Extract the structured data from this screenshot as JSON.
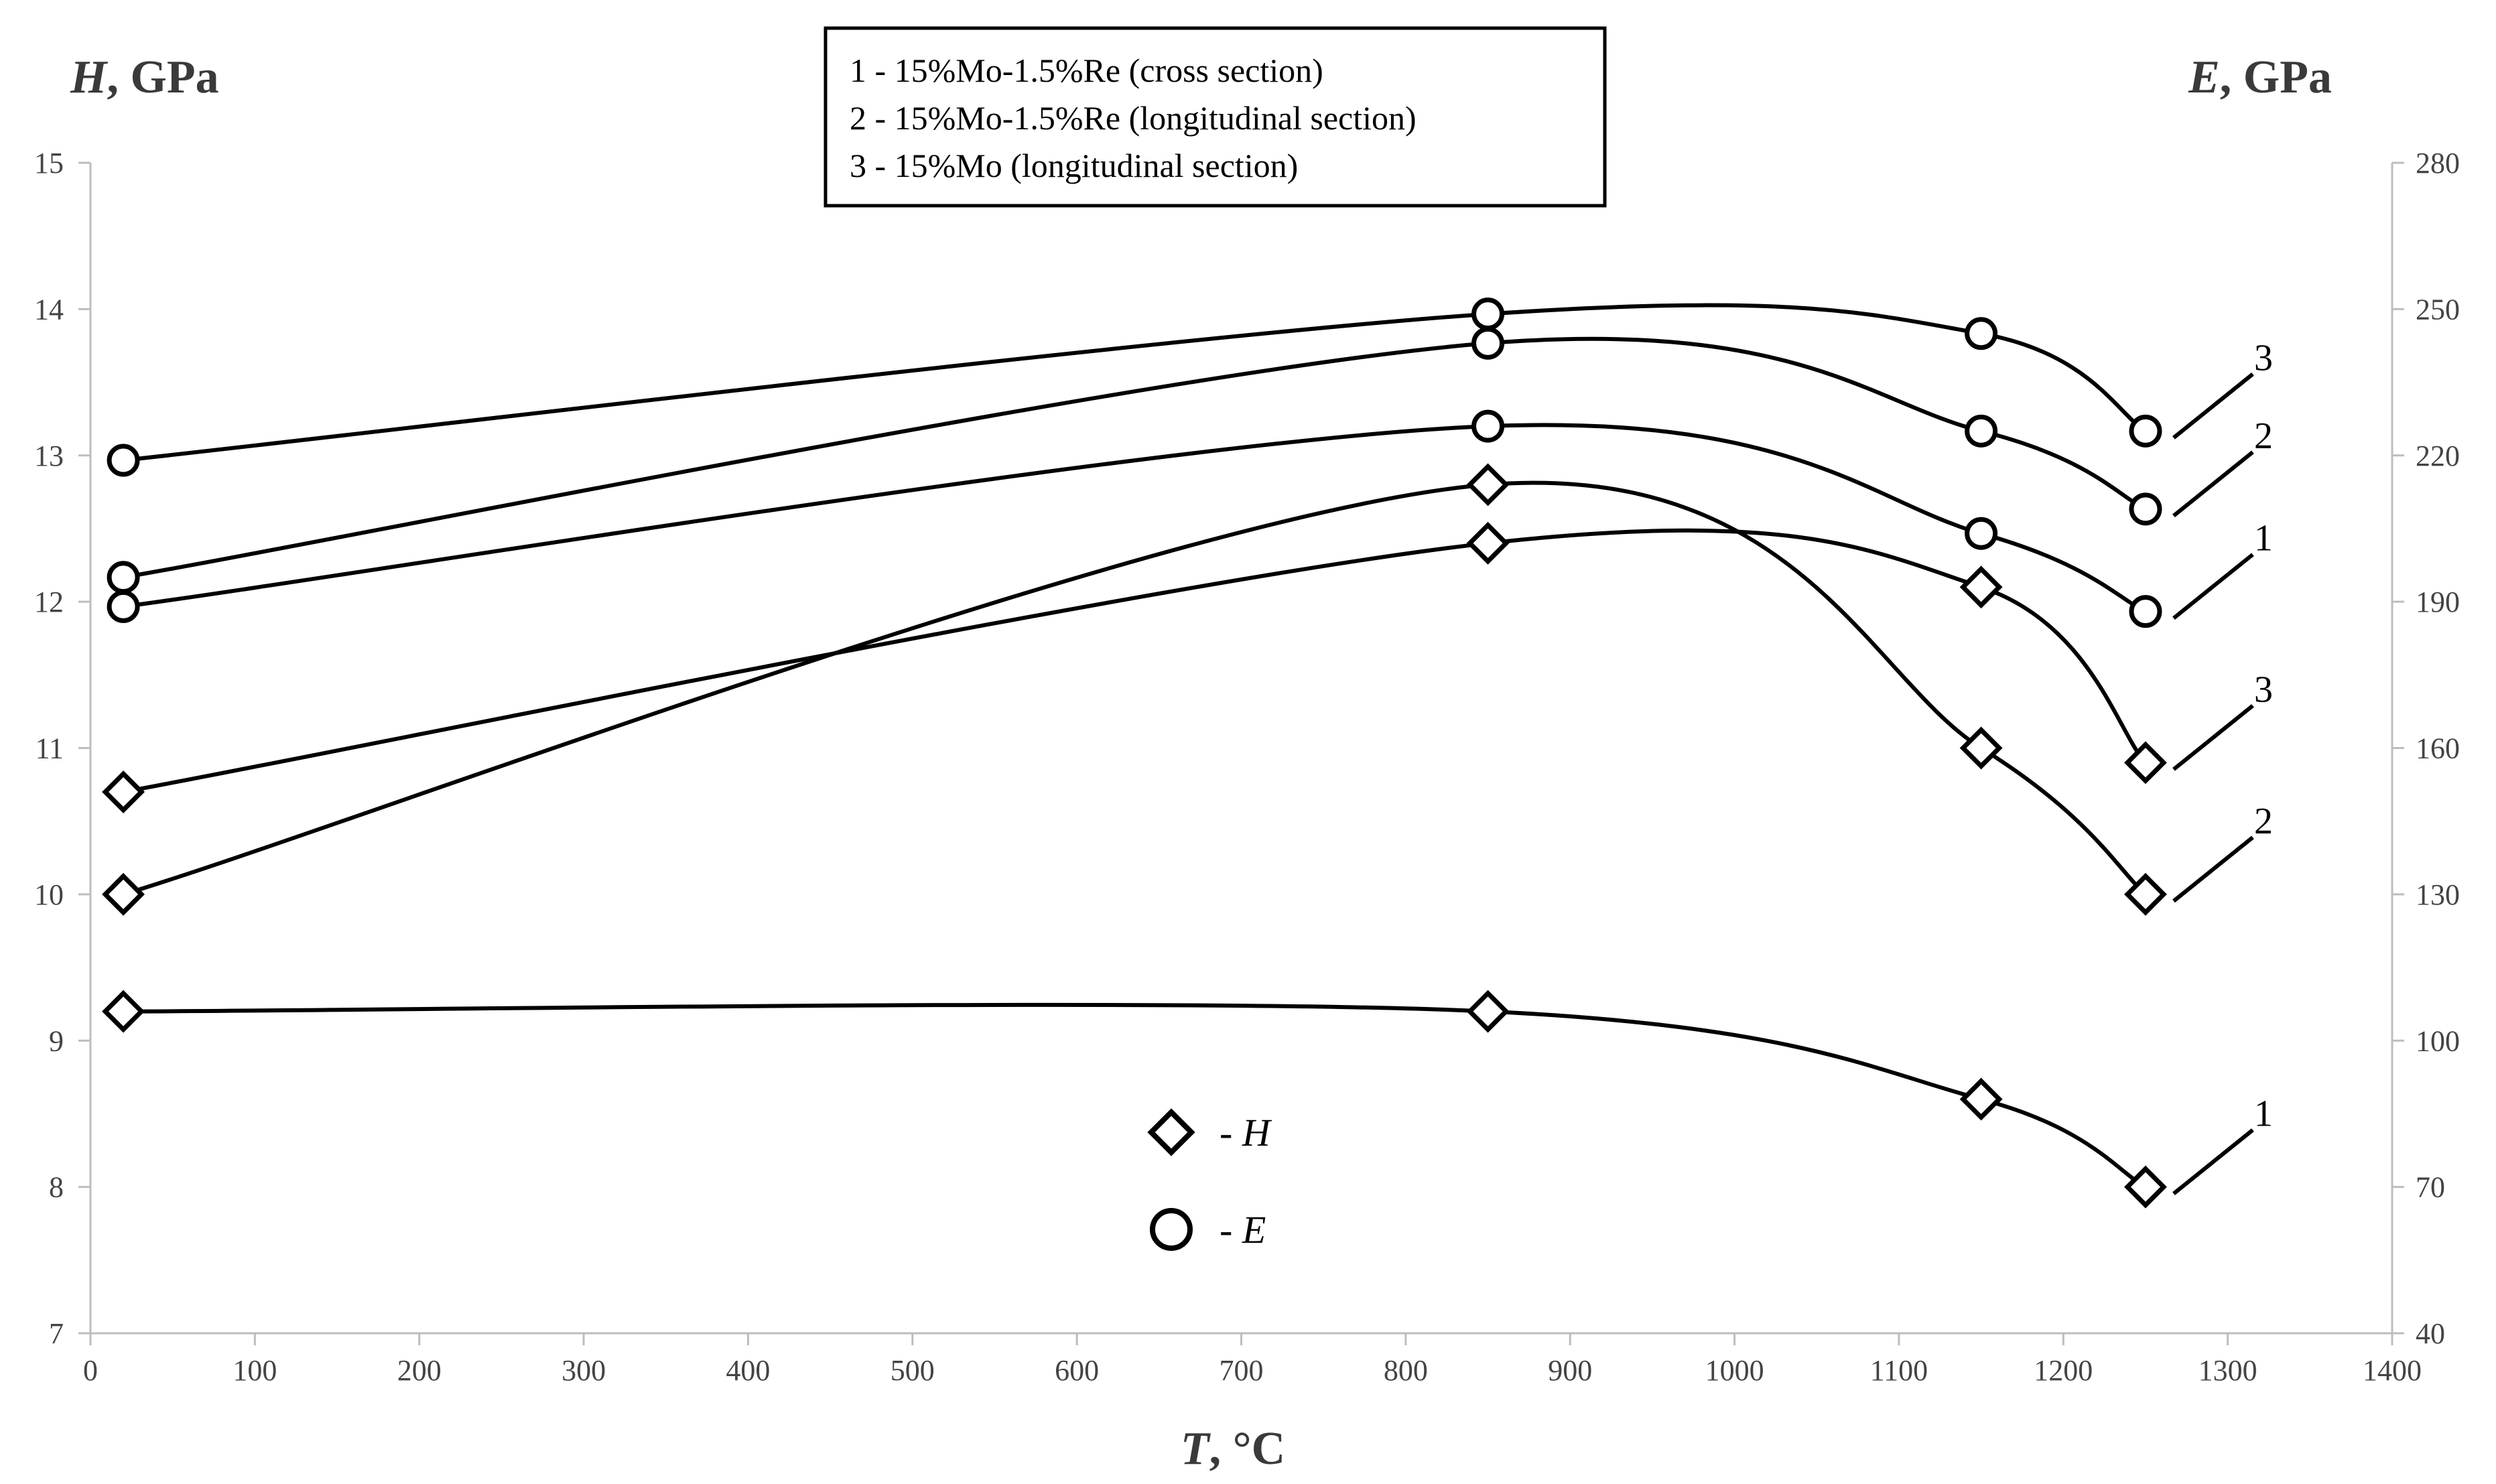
{
  "chart_data": {
    "type": "line",
    "xlabel": {
      "var": "T",
      "unit": ", °C"
    },
    "ylabel_left": {
      "var": "H",
      "unit": ", GPa"
    },
    "ylabel_right": {
      "var": "E",
      "unit": ", GPa"
    },
    "xlim": [
      0,
      1400
    ],
    "ylim_left": [
      7,
      15
    ],
    "ylim_right": [
      40,
      280
    ],
    "x_ticks": [
      0,
      100,
      200,
      300,
      400,
      500,
      600,
      700,
      800,
      900,
      1000,
      1100,
      1200,
      1300,
      1400
    ],
    "y_left_ticks": [
      7,
      8,
      9,
      10,
      11,
      12,
      13,
      14,
      15
    ],
    "y_right_ticks": [
      40,
      70,
      100,
      130,
      160,
      190,
      220,
      250,
      280
    ],
    "grid": false,
    "legend": {
      "placement": "top-center",
      "entries": [
        "1 - 15%Mo-1.5%Re (cross section)",
        "2 - 15%Mo-1.5%Re (longitudinal section)",
        "3 - 15%Mo (longitudinal section)"
      ]
    },
    "marker_legend": [
      {
        "symbol": "diamond",
        "prefix": "- ",
        "label": "H"
      },
      {
        "symbol": "circle",
        "prefix": "- ",
        "label": "E"
      }
    ],
    "series": [
      {
        "quantity": "H",
        "curve": "1",
        "marker": "diamond",
        "axis": "left",
        "x": [
          20,
          850,
          1150,
          1250
        ],
        "values": [
          9.2,
          9.2,
          8.6,
          8.0
        ]
      },
      {
        "quantity": "H",
        "curve": "2",
        "marker": "diamond",
        "axis": "left",
        "x": [
          20,
          850,
          1150,
          1250
        ],
        "values": [
          10.0,
          12.8,
          11.0,
          10.0
        ]
      },
      {
        "quantity": "H",
        "curve": "3",
        "marker": "diamond",
        "axis": "left",
        "x": [
          20,
          850,
          1150,
          1250
        ],
        "values": [
          10.7,
          12.4,
          12.1,
          10.9
        ]
      },
      {
        "quantity": "E",
        "curve": "1",
        "marker": "circle",
        "axis": "right",
        "x": [
          20,
          850,
          1150,
          1250
        ],
        "values": [
          189,
          226,
          204,
          188
        ]
      },
      {
        "quantity": "E",
        "curve": "2",
        "marker": "circle",
        "axis": "right",
        "x": [
          20,
          850,
          1150,
          1250
        ],
        "values": [
          195,
          243,
          225,
          209
        ]
      },
      {
        "quantity": "E",
        "curve": "3",
        "marker": "circle",
        "axis": "right",
        "x": [
          20,
          850,
          1150,
          1250
        ],
        "values": [
          219,
          249,
          245,
          225
        ]
      }
    ]
  }
}
